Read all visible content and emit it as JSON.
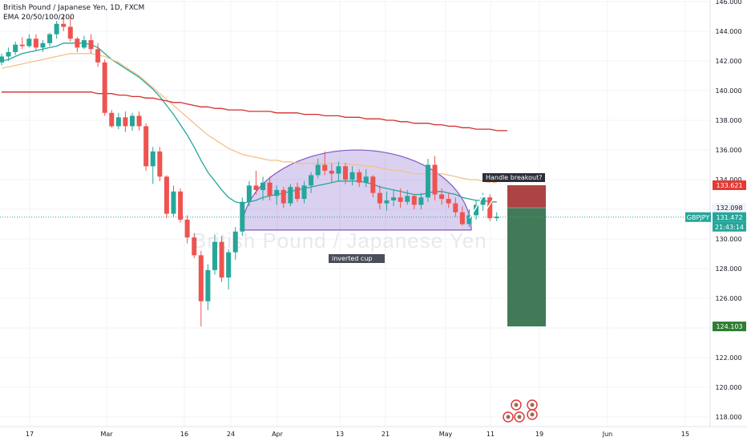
{
  "header": {
    "title": "British Pound / Japanese Yen, 1D, FXCM",
    "indicator": "EMA 20/50/100/200"
  },
  "watermark": "British Pound / Japanese Yen",
  "annotations": {
    "handle_label": "Handle breakout?",
    "cup_label": "inverted cup"
  },
  "price_badges": {
    "target_high": "133.621",
    "level_mid": "132.098",
    "symbol": "GBPJPY",
    "last_price": "131.472",
    "countdown": "21:43:14",
    "target_low": "124.103"
  },
  "colors": {
    "up": "#26a69a",
    "down": "#ef5350",
    "ema20": "#26a69a",
    "ema50": "#f5c089",
    "ema100": "#ef5350",
    "ema200": "#d32f2f",
    "cup_fill": "#7b57c9",
    "stop_zone": "#a33030",
    "target_zone": "#2e6b45"
  },
  "chart_data": {
    "type": "candlestick",
    "title": "British Pound / Japanese Yen, 1D, FXCM",
    "y_axis_ticks": [
      "118.000",
      "120.000",
      "122.000",
      "124.000",
      "126.000",
      "128.000",
      "130.000",
      "132.000",
      "134.000",
      "136.000",
      "138.000",
      "140.000",
      "142.000",
      "144.000",
      "146.000"
    ],
    "x_axis_ticks": [
      "17",
      "Mar",
      "16",
      "24",
      "Apr",
      "13",
      "21",
      "May",
      "11",
      "19",
      "Jun",
      "15"
    ],
    "ylim": [
      117.3,
      146.2
    ],
    "candles": [
      [
        141.9,
        142.5,
        141.7,
        142.3
      ],
      [
        142.3,
        142.9,
        142.0,
        142.6
      ],
      [
        142.6,
        143.3,
        142.4,
        143.1
      ],
      [
        143.1,
        143.6,
        142.8,
        143.0
      ],
      [
        143.0,
        143.8,
        142.9,
        143.5
      ],
      [
        143.5,
        143.8,
        142.7,
        142.9
      ],
      [
        142.9,
        143.4,
        142.6,
        143.2
      ],
      [
        143.2,
        143.9,
        143.0,
        143.8
      ],
      [
        143.8,
        144.7,
        143.5,
        144.5
      ],
      [
        144.5,
        145.1,
        144.0,
        144.3
      ],
      [
        144.3,
        145.0,
        143.3,
        143.5
      ],
      [
        143.5,
        143.6,
        142.6,
        142.9
      ],
      [
        142.9,
        143.7,
        142.8,
        143.4
      ],
      [
        143.4,
        143.8,
        142.5,
        142.8
      ],
      [
        142.8,
        143.2,
        141.6,
        141.9
      ],
      [
        141.9,
        142.1,
        138.3,
        138.5
      ],
      [
        138.5,
        138.7,
        137.5,
        137.6
      ],
      [
        137.6,
        138.5,
        137.4,
        138.2
      ],
      [
        138.2,
        138.6,
        137.2,
        137.6
      ],
      [
        137.6,
        138.5,
        137.3,
        138.3
      ],
      [
        138.3,
        138.6,
        137.3,
        137.6
      ],
      [
        137.6,
        137.8,
        134.6,
        134.9
      ],
      [
        134.9,
        136.2,
        133.7,
        135.9
      ],
      [
        135.9,
        136.2,
        133.9,
        134.2
      ],
      [
        134.2,
        134.3,
        131.4,
        131.7
      ],
      [
        131.7,
        133.6,
        131.5,
        133.2
      ],
      [
        133.2,
        133.4,
        131.1,
        131.3
      ],
      [
        131.3,
        131.6,
        129.7,
        130.1
      ],
      [
        130.1,
        130.4,
        128.7,
        128.9
      ],
      [
        128.9,
        129.2,
        124.1,
        125.8
      ],
      [
        125.8,
        128.3,
        125.2,
        127.9
      ],
      [
        127.9,
        130.3,
        127.6,
        129.8
      ],
      [
        129.8,
        130.2,
        127.1,
        127.4
      ],
      [
        127.4,
        129.3,
        126.6,
        129.1
      ],
      [
        129.1,
        130.8,
        128.6,
        130.5
      ],
      [
        130.5,
        132.8,
        130.2,
        132.5
      ],
      [
        132.5,
        133.9,
        132.2,
        133.6
      ],
      [
        133.6,
        134.6,
        133.0,
        133.3
      ],
      [
        133.3,
        134.2,
        132.6,
        133.8
      ],
      [
        133.8,
        134.2,
        132.6,
        132.9
      ],
      [
        132.9,
        133.6,
        132.3,
        133.3
      ],
      [
        133.3,
        133.5,
        132.1,
        132.4
      ],
      [
        132.4,
        133.7,
        132.2,
        133.5
      ],
      [
        133.5,
        133.8,
        132.5,
        132.7
      ],
      [
        132.7,
        133.9,
        132.4,
        133.6
      ],
      [
        133.6,
        134.5,
        133.1,
        134.3
      ],
      [
        134.3,
        135.4,
        134.1,
        135.0
      ],
      [
        135.0,
        135.9,
        134.3,
        134.6
      ],
      [
        134.6,
        135.1,
        133.8,
        134.4
      ],
      [
        134.4,
        135.2,
        133.9,
        134.9
      ],
      [
        134.9,
        135.1,
        133.7,
        134.0
      ],
      [
        134.0,
        134.9,
        133.6,
        134.5
      ],
      [
        134.5,
        134.7,
        133.5,
        133.8
      ],
      [
        133.8,
        134.7,
        133.5,
        134.2
      ],
      [
        134.2,
        134.3,
        132.8,
        133.1
      ],
      [
        133.1,
        133.6,
        132.0,
        132.4
      ],
      [
        132.4,
        133.2,
        131.9,
        132.6
      ],
      [
        132.6,
        133.3,
        132.2,
        132.8
      ],
      [
        132.8,
        133.4,
        132.1,
        132.5
      ],
      [
        132.5,
        133.3,
        132.3,
        132.9
      ],
      [
        132.9,
        133.0,
        132.0,
        132.3
      ],
      [
        132.3,
        133.1,
        132.0,
        132.8
      ],
      [
        132.8,
        135.4,
        132.5,
        135.0
      ],
      [
        135.0,
        135.6,
        132.6,
        133.0
      ],
      [
        133.0,
        133.4,
        132.3,
        132.7
      ],
      [
        132.7,
        133.1,
        132.1,
        132.4
      ],
      [
        132.4,
        132.8,
        131.5,
        131.8
      ],
      [
        131.8,
        132.2,
        130.9,
        131.0
      ],
      [
        131.0,
        132.0,
        130.8,
        131.6
      ],
      [
        131.6,
        132.6,
        131.3,
        132.3
      ],
      [
        132.3,
        133.1,
        131.9,
        132.8
      ],
      [
        132.8,
        133.0,
        131.2,
        131.4
      ],
      [
        131.4,
        131.8,
        131.2,
        131.5
      ]
    ],
    "ema_lines": [
      {
        "name": "EMA 20",
        "values": [
          142.0,
          142.1,
          142.3,
          142.5,
          142.6,
          142.7,
          142.8,
          142.9,
          143.0,
          143.2,
          143.2,
          143.2,
          143.2,
          143.1,
          142.9,
          142.5,
          142.1,
          141.8,
          141.5,
          141.2,
          140.9,
          140.5,
          140.1,
          139.6,
          139.0,
          138.4,
          137.7,
          137.0,
          136.2,
          135.3,
          134.5,
          133.9,
          133.3,
          132.8,
          132.5,
          132.4,
          132.5,
          132.6,
          132.8,
          132.9,
          133.0,
          133.1,
          133.2,
          133.3,
          133.4,
          133.5,
          133.6,
          133.7,
          133.8,
          133.9,
          133.9,
          133.9,
          133.9,
          133.8,
          133.7,
          133.5,
          133.4,
          133.3,
          133.2,
          133.1,
          133.0,
          133.0,
          133.1,
          133.2,
          133.2,
          133.1,
          133.0,
          132.8,
          132.7,
          132.6,
          132.6,
          132.5,
          132.5
        ]
      },
      {
        "name": "EMA 50",
        "values": [
          141.5,
          141.6,
          141.7,
          141.8,
          141.9,
          142.0,
          142.1,
          142.2,
          142.3,
          142.4,
          142.5,
          142.5,
          142.5,
          142.5,
          142.4,
          142.3,
          142.1,
          141.9,
          141.6,
          141.3,
          141.0,
          140.6,
          140.2,
          139.8,
          139.4,
          139.0,
          138.6,
          138.2,
          137.8,
          137.4,
          137.0,
          136.7,
          136.4,
          136.1,
          135.9,
          135.7,
          135.6,
          135.5,
          135.4,
          135.3,
          135.3,
          135.2,
          135.2,
          135.1,
          135.1,
          135.1,
          135.1,
          135.1,
          135.1,
          135.1,
          135.1,
          135.0,
          135.0,
          134.9,
          134.9,
          134.8,
          134.7,
          134.6,
          134.6,
          134.5,
          134.4,
          134.4,
          134.4,
          134.4,
          134.4,
          134.3,
          134.2,
          134.1,
          134.0,
          134.0,
          133.9,
          133.8,
          133.8
        ]
      },
      {
        "name": "EMA 200",
        "values": [
          139.9,
          139.9,
          139.9,
          139.9,
          139.9,
          139.9,
          139.9,
          139.9,
          139.9,
          139.9,
          139.9,
          139.9,
          139.9,
          139.9,
          139.8,
          139.8,
          139.8,
          139.7,
          139.7,
          139.6,
          139.6,
          139.5,
          139.5,
          139.4,
          139.3,
          139.2,
          139.2,
          139.1,
          139.0,
          138.9,
          138.9,
          138.8,
          138.8,
          138.7,
          138.7,
          138.7,
          138.6,
          138.6,
          138.6,
          138.6,
          138.5,
          138.5,
          138.5,
          138.5,
          138.4,
          138.4,
          138.4,
          138.3,
          138.3,
          138.3,
          138.2,
          138.2,
          138.2,
          138.1,
          138.1,
          138.1,
          138.0,
          138.0,
          137.9,
          137.9,
          137.8,
          137.8,
          137.8,
          137.7,
          137.7,
          137.6,
          137.6,
          137.5,
          137.5,
          137.4,
          137.4,
          137.4,
          137.3
        ]
      }
    ],
    "position_box": {
      "entry": 132.098,
      "stop": 133.621,
      "target": 124.103
    }
  }
}
